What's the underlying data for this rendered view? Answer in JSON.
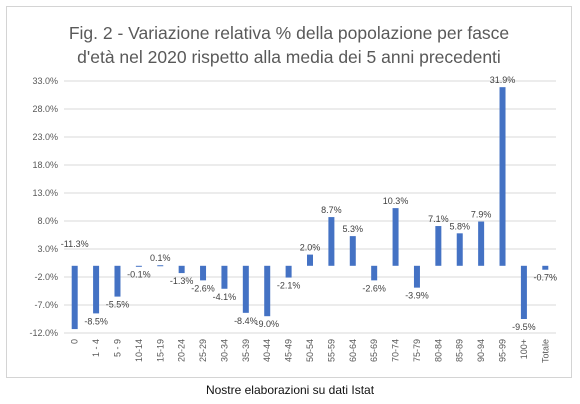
{
  "caption": "Nostre elaborazioni su dati Istat",
  "colors": {
    "bar": "#4472c4",
    "grid": "#d9d9d9",
    "text": "#595959"
  },
  "chart_data": {
    "type": "bar",
    "title_lines": [
      "Fig. 2 - Variazione relativa % della popolazione per fasce",
      "d'età nel 2020 rispetto alla media dei 5 anni precedenti"
    ],
    "categories": [
      "0",
      "1 - 4",
      "5 - 9",
      "10-14",
      "15-19",
      "20-24",
      "25-29",
      "30-34",
      "35-39",
      "40-44",
      "45-49",
      "50-54",
      "55-59",
      "60-64",
      "65-69",
      "70-74",
      "75-79",
      "80-84",
      "85-89",
      "90-94",
      "95-99",
      "100+",
      "Totale"
    ],
    "values": [
      -11.3,
      -8.5,
      -5.5,
      -0.1,
      0.1,
      -1.3,
      -2.6,
      -4.1,
      -8.4,
      -9.0,
      -2.1,
      2.0,
      8.7,
      5.3,
      -2.6,
      10.3,
      -3.9,
      7.1,
      5.8,
      7.9,
      31.9,
      -9.5,
      -0.7
    ],
    "data_labels": [
      "-11.3%",
      "-8.5%",
      "-5.5%",
      "-0.1%",
      "0.1%",
      "-1.3%",
      "-2.6%",
      "-4.1%",
      "-8.4%",
      "-9.0%",
      "-2.1%",
      "2.0%",
      "8.7%",
      "5.3%",
      "-2.6%",
      "10.3%",
      "-3.9%",
      "7.1%",
      "5.8%",
      "7.9%",
      "31.9%",
      "-9.5%",
      "-0.7%"
    ],
    "y_ticks": [
      33.0,
      28.0,
      23.0,
      18.0,
      13.0,
      8.0,
      3.0,
      -2.0,
      -7.0,
      -12.0
    ],
    "y_tick_labels": [
      "33.0%",
      "28.0%",
      "23.0%",
      "18.0%",
      "13.0%",
      "8.0%",
      "3.0%",
      "-2.0%",
      "-7.0%",
      "-12.0%"
    ],
    "ylim": [
      -12.0,
      33.0
    ],
    "grid": true,
    "legend": "none"
  }
}
